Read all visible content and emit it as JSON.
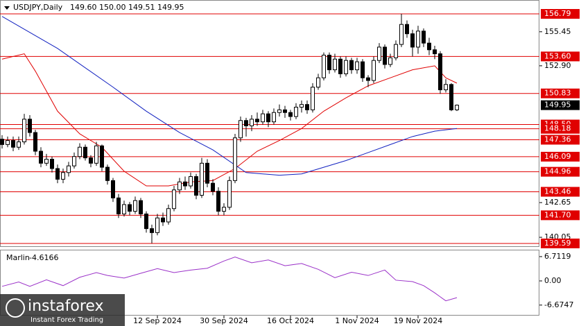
{
  "chart_data": [
    {
      "type": "candlestick",
      "title": "USDJPY,Daily",
      "header_values": [
        "149.60",
        "150.00",
        "149.51",
        "149.95"
      ],
      "open": [
        147.4,
        147.0,
        147.3,
        146.8,
        147.2,
        148.9,
        147.9,
        146.5,
        145.6,
        145.9,
        145.2,
        144.4,
        144.9,
        145.4,
        146.1,
        146.8,
        146.0,
        145.6,
        146.9,
        145.3,
        144.3,
        143.0,
        141.8,
        142.5,
        142.0,
        142.8,
        141.8,
        140.7,
        140.4,
        141.5,
        141.2,
        142.2,
        143.6,
        144.2,
        143.9,
        144.6,
        143.2,
        145.6,
        144.1,
        143.5,
        142.0,
        142.3,
        144.3,
        147.5,
        148.8,
        148.4,
        148.9,
        148.7,
        149.3,
        148.7,
        149.4,
        149.6,
        149.4,
        149.1,
        149.8,
        150.0,
        149.6,
        151.3,
        152.0,
        153.7,
        152.6,
        153.4,
        152.3,
        153.3,
        152.6,
        153.2,
        152.0,
        151.8,
        153.3,
        154.3,
        153.0,
        153.5,
        154.5,
        156.0,
        155.3,
        154.3,
        155.5,
        154.6,
        154.1,
        153.8,
        151.1,
        151.5,
        149.6
      ],
      "high": [
        147.7,
        147.6,
        147.6,
        147.6,
        149.3,
        149.2,
        148.1,
        146.8,
        146.3,
        146.1,
        145.5,
        145.2,
        145.7,
        146.4,
        147.1,
        147.0,
        146.2,
        147.2,
        147.0,
        145.5,
        144.5,
        143.3,
        142.8,
        142.7,
        143.1,
        143.0,
        142.0,
        141.0,
        141.8,
        141.9,
        142.5,
        143.9,
        144.5,
        144.6,
        144.9,
        144.8,
        146.0,
        145.9,
        144.4,
        143.8,
        142.6,
        144.6,
        147.8,
        149.1,
        149.0,
        149.2,
        149.4,
        149.6,
        149.5,
        149.7,
        150.0,
        149.9,
        149.6,
        150.1,
        150.3,
        150.3,
        151.6,
        152.3,
        153.9,
        153.9,
        153.8,
        153.6,
        153.6,
        153.5,
        153.5,
        153.4,
        152.2,
        153.6,
        154.6,
        154.5,
        153.8,
        154.8,
        156.8,
        156.3,
        155.6,
        155.9,
        155.7,
        155.0,
        154.4,
        154.0,
        151.9,
        151.6,
        150.0
      ],
      "low": [
        146.7,
        146.8,
        146.5,
        146.6,
        147.0,
        147.6,
        146.2,
        145.3,
        145.4,
        144.9,
        144.1,
        144.1,
        144.6,
        145.2,
        145.9,
        145.8,
        145.3,
        145.4,
        145.0,
        144.0,
        142.7,
        141.5,
        141.6,
        141.7,
        141.8,
        141.5,
        140.4,
        139.6,
        140.2,
        140.9,
        141.0,
        142.0,
        143.3,
        143.6,
        143.7,
        142.9,
        143.0,
        143.8,
        143.2,
        141.7,
        141.7,
        142.1,
        144.1,
        147.2,
        147.6,
        148.0,
        148.4,
        148.5,
        148.3,
        148.5,
        149.1,
        149.0,
        148.8,
        148.9,
        149.4,
        149.3,
        149.4,
        151.1,
        151.8,
        152.3,
        152.4,
        152.0,
        152.1,
        152.3,
        152.3,
        151.7,
        151.3,
        151.6,
        153.1,
        152.7,
        152.8,
        153.3,
        154.3,
        155.0,
        153.6,
        153.8,
        154.3,
        153.7,
        153.4,
        150.8,
        150.9,
        149.5,
        149.51
      ],
      "close": [
        147.0,
        147.3,
        146.8,
        147.2,
        148.9,
        147.9,
        146.5,
        145.6,
        145.9,
        145.2,
        144.4,
        144.9,
        145.4,
        146.1,
        146.8,
        146.0,
        145.6,
        146.9,
        145.3,
        144.3,
        143.0,
        141.8,
        142.5,
        142.0,
        142.8,
        141.8,
        140.7,
        140.4,
        141.5,
        141.2,
        142.2,
        143.6,
        144.2,
        143.9,
        144.6,
        143.2,
        145.6,
        144.1,
        143.5,
        142.0,
        142.3,
        144.3,
        147.5,
        148.8,
        148.4,
        148.9,
        148.7,
        149.3,
        148.7,
        149.4,
        149.6,
        149.4,
        149.1,
        149.8,
        150.0,
        149.6,
        151.3,
        152.0,
        153.7,
        152.6,
        153.4,
        152.3,
        153.3,
        152.6,
        153.2,
        152.0,
        151.8,
        153.3,
        154.3,
        153.0,
        153.5,
        154.5,
        156.0,
        155.3,
        154.3,
        155.5,
        154.6,
        154.1,
        153.8,
        151.1,
        151.5,
        149.6,
        149.95
      ],
      "lines": [
        {
          "color": "#e00000",
          "x": [
            0,
            4,
            6,
            10,
            14,
            18,
            22,
            26,
            30,
            34,
            38,
            42,
            46,
            50,
            54,
            58,
            62,
            66,
            70,
            74,
            78,
            80,
            82
          ],
          "values": [
            153.4,
            153.8,
            152.5,
            149.5,
            147.8,
            146.8,
            145.0,
            143.9,
            143.9,
            144.2,
            144.3,
            145.2,
            146.5,
            147.3,
            148.2,
            149.5,
            150.5,
            151.4,
            152.0,
            152.6,
            152.9,
            152.0,
            151.6
          ]
        },
        {
          "color": "#1020c0",
          "x": [
            0,
            10,
            20,
            26,
            32,
            38,
            44,
            50,
            54,
            58,
            62,
            66,
            70,
            74,
            78,
            82
          ],
          "values": [
            156.6,
            154.2,
            151.3,
            149.5,
            147.9,
            146.6,
            144.9,
            144.7,
            144.8,
            145.3,
            145.8,
            146.4,
            147.0,
            147.6,
            148.0,
            148.2
          ]
        }
      ],
      "levels": [
        156.79,
        {
          "value": 153.6,
          "label": "153.60"
        },
        150.83,
        {
          "value": 148.5,
          "label": "148.50"
        },
        148.18,
        147.36,
        146.09,
        144.96,
        143.46,
        {
          "value": 141.7,
          "label": "141.70"
        },
        139.59
      ],
      "level_color": "#e00000",
      "current_price": 149.95,
      "ylim": [
        139.38,
        157.83
      ],
      "yticks": [
        155.45,
        {
          "value": 152.9,
          "label": "152.90"
        },
        142.65,
        140.05
      ],
      "xticks": [
        {
          "value": 28,
          "label": "12 Sep 2024"
        },
        {
          "value": 40,
          "label": "30 Sep 2024"
        },
        {
          "value": 52,
          "label": "16 Oct 2024"
        },
        {
          "value": 64,
          "label": "1 Nov 2024"
        },
        {
          "value": 75,
          "label": "19 Nov 2024"
        }
      ],
      "watermark": {
        "name": "instaforex",
        "tagline": "Instant Forex Trading"
      }
    },
    {
      "type": "line",
      "title": "Marlin",
      "color": "#9a30c8",
      "x": [
        0,
        3,
        5,
        8,
        11,
        14,
        17,
        19,
        22,
        25,
        28,
        31,
        34,
        37,
        40,
        42,
        45,
        48,
        51,
        54,
        57,
        60,
        63,
        66,
        69,
        71,
        74,
        76,
        78,
        80,
        82
      ],
      "values": [
        -1.5,
        -0.3,
        -1.5,
        0.3,
        -1.3,
        1.0,
        2.3,
        1.5,
        0.8,
        2.1,
        3.4,
        2.3,
        3.0,
        3.5,
        5.5,
        6.6,
        5.0,
        5.8,
        4.2,
        4.8,
        3.2,
        0.9,
        2.4,
        1.5,
        3.0,
        0.2,
        -0.2,
        -1.3,
        -3.3,
        -5.5,
        -4.6166
      ],
      "ylim": [
        -9.58,
        8.62
      ],
      "yticks": [
        6.7119,
        {
          "value": 0,
          "label": "0.00"
        },
        -6.6747
      ]
    }
  ]
}
